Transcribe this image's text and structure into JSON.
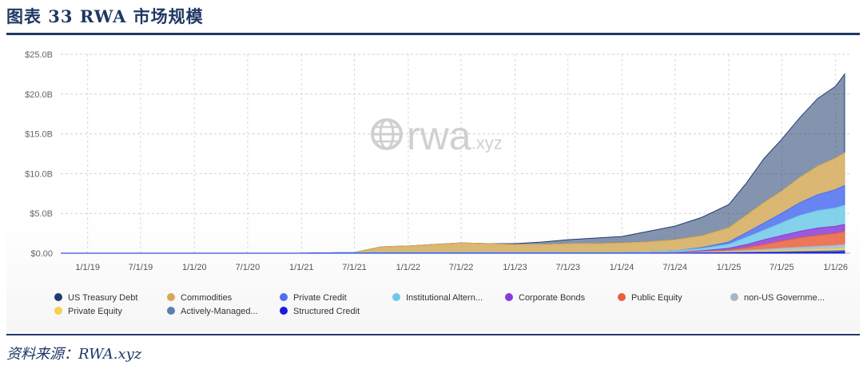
{
  "header": {
    "title": "图表 33   RWA 市场规模"
  },
  "footer": {
    "source": "资料来源：RWA.xyz"
  },
  "watermark": {
    "text": "rwa",
    "suffix": ".xyz",
    "icon": "globe-icon"
  },
  "chart_data": {
    "type": "area",
    "stacked": true,
    "title": "",
    "xlabel": "",
    "ylabel": "",
    "ylim": [
      0,
      25
    ],
    "y_unit": "B",
    "y_ticks": [
      "$0.00",
      "$5.0B",
      "$10.0B",
      "$15.0B",
      "$20.0B",
      "$25.0B"
    ],
    "x_ticks": [
      "1/1/19",
      "7/1/19",
      "1/1/20",
      "7/1/20",
      "1/1/21",
      "7/1/21",
      "1/1/22",
      "7/1/22",
      "1/1/23",
      "7/1/23",
      "1/1/24",
      "7/1/24",
      "1/1/25",
      "7/1/25",
      "1/1/26"
    ],
    "grid": true,
    "legend_position": "bottom",
    "x": [
      "2018-10-01",
      "2019-01-01",
      "2019-07-01",
      "2020-01-01",
      "2020-07-01",
      "2021-01-01",
      "2021-04-01",
      "2021-07-01",
      "2021-10-01",
      "2022-01-01",
      "2022-04-01",
      "2022-07-01",
      "2022-10-01",
      "2023-01-01",
      "2023-04-01",
      "2023-07-01",
      "2023-10-01",
      "2024-01-01",
      "2024-04-01",
      "2024-07-01",
      "2024-10-01",
      "2025-01-01",
      "2025-03-01",
      "2025-05-01",
      "2025-07-01",
      "2025-09-01",
      "2025-11-01",
      "2026-01-01",
      "2026-02-01"
    ],
    "series": [
      {
        "name": "Structured Credit",
        "color": "#1a1ae0",
        "values": [
          0,
          0,
          0,
          0,
          0,
          0,
          0,
          0,
          0,
          0,
          0,
          0,
          0,
          0,
          0,
          0,
          0,
          0,
          0,
          0,
          0.02,
          0.03,
          0.05,
          0.06,
          0.08,
          0.1,
          0.12,
          0.15,
          0.18
        ]
      },
      {
        "name": "Actively-Managed...",
        "color": "#5b7fae",
        "values": [
          0,
          0,
          0,
          0,
          0,
          0,
          0,
          0,
          0,
          0,
          0,
          0,
          0,
          0,
          0,
          0,
          0,
          0,
          0,
          0,
          0.02,
          0.04,
          0.06,
          0.08,
          0.1,
          0.12,
          0.14,
          0.16,
          0.18
        ]
      },
      {
        "name": "Private Equity",
        "color": "#f5d24a",
        "values": [
          0,
          0,
          0,
          0,
          0,
          0,
          0,
          0,
          0,
          0,
          0,
          0,
          0,
          0,
          0,
          0,
          0,
          0,
          0,
          0,
          0.02,
          0.04,
          0.06,
          0.1,
          0.15,
          0.18,
          0.2,
          0.22,
          0.25
        ]
      },
      {
        "name": "non-US Governme...",
        "color": "#a9b6c9",
        "values": [
          0,
          0,
          0,
          0,
          0,
          0,
          0,
          0,
          0,
          0,
          0,
          0,
          0,
          0,
          0,
          0,
          0,
          0,
          0,
          0.05,
          0.1,
          0.15,
          0.2,
          0.25,
          0.3,
          0.35,
          0.4,
          0.45,
          0.5
        ]
      },
      {
        "name": "Public Equity",
        "color": "#e8603c",
        "values": [
          0,
          0,
          0,
          0,
          0,
          0,
          0,
          0,
          0,
          0,
          0,
          0,
          0,
          0,
          0,
          0,
          0,
          0,
          0,
          0,
          0.05,
          0.15,
          0.3,
          0.6,
          0.9,
          1.2,
          1.4,
          1.5,
          1.6
        ]
      },
      {
        "name": "Corporate Bonds",
        "color": "#8a3cd6",
        "values": [
          0,
          0,
          0,
          0,
          0,
          0,
          0,
          0,
          0,
          0,
          0,
          0,
          0,
          0,
          0,
          0,
          0,
          0,
          0,
          0.05,
          0.1,
          0.2,
          0.4,
          0.6,
          0.7,
          0.8,
          0.9,
          0.9,
          0.9
        ]
      },
      {
        "name": "Institutional Altern...",
        "color": "#6ec9e8",
        "values": [
          0,
          0,
          0,
          0,
          0,
          0,
          0.05,
          0.1,
          0.1,
          0.1,
          0.1,
          0.1,
          0.1,
          0.1,
          0.1,
          0.1,
          0.1,
          0.1,
          0.15,
          0.2,
          0.3,
          0.5,
          0.9,
          1.2,
          1.6,
          2.0,
          2.2,
          2.3,
          2.4
        ]
      },
      {
        "name": "Private Credit",
        "color": "#4d6ff0",
        "values": [
          0,
          0,
          0,
          0,
          0,
          0,
          0,
          0,
          0,
          0,
          0,
          0,
          0,
          0,
          0,
          0,
          0,
          0,
          0,
          0,
          0.1,
          0.3,
          0.6,
          0.9,
          1.2,
          1.6,
          2.0,
          2.3,
          2.5
        ]
      },
      {
        "name": "Commodities",
        "color": "#d4aa5a",
        "values": [
          0,
          0,
          0,
          0,
          0,
          0,
          0,
          0,
          0.7,
          0.8,
          1.0,
          1.2,
          1.1,
          1.0,
          1.0,
          1.1,
          1.1,
          1.2,
          1.3,
          1.4,
          1.5,
          1.8,
          2.2,
          2.6,
          2.8,
          3.2,
          3.6,
          4.0,
          4.1
        ]
      },
      {
        "name": "US Treasury Debt",
        "color": "#1f3d6e",
        "values": [
          0,
          0,
          0,
          0,
          0,
          0,
          0,
          0,
          0,
          0,
          0,
          0,
          0,
          0.1,
          0.3,
          0.5,
          0.7,
          0.8,
          1.3,
          1.7,
          2.3,
          2.9,
          4.0,
          5.5,
          6.5,
          7.5,
          8.5,
          9.0,
          9.9
        ]
      }
    ],
    "legend_order": [
      "US Treasury Debt",
      "Commodities",
      "Private Credit",
      "Institutional Altern...",
      "Corporate Bonds",
      "Public Equity",
      "non-US Governme...",
      "Private Equity",
      "Actively-Managed...",
      "Structured Credit"
    ]
  }
}
